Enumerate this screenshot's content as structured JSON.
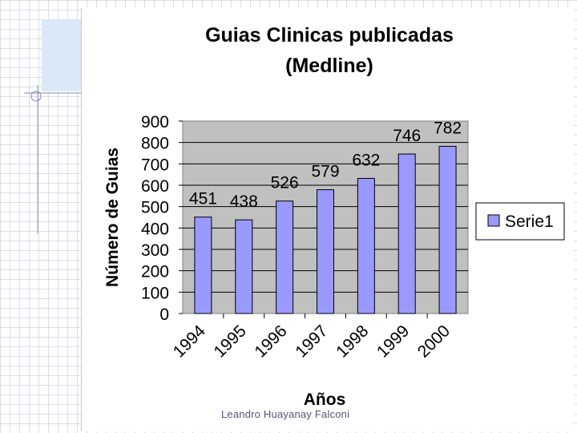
{
  "slide": {
    "footer": "Leandro Huayanay Falconi"
  },
  "chart_data": {
    "type": "bar",
    "title": [
      "Guias Clinicas publicadas",
      "(Medline)"
    ],
    "categories": [
      "1994",
      "1995",
      "1996",
      "1997",
      "1998",
      "1999",
      "2000"
    ],
    "series": [
      {
        "name": "Serie1",
        "values": [
          451,
          438,
          526,
          579,
          632,
          746,
          782
        ],
        "color": "#9999ff"
      }
    ],
    "xlabel": "Años",
    "ylabel": "Número de Guias",
    "ylim": [
      0,
      900
    ],
    "yticks": [
      0,
      100,
      200,
      300,
      400,
      500,
      600,
      700,
      800,
      900
    ],
    "data_labels": true,
    "legend": "right",
    "plot_background": "#c0c0c0",
    "gridlines": true
  }
}
